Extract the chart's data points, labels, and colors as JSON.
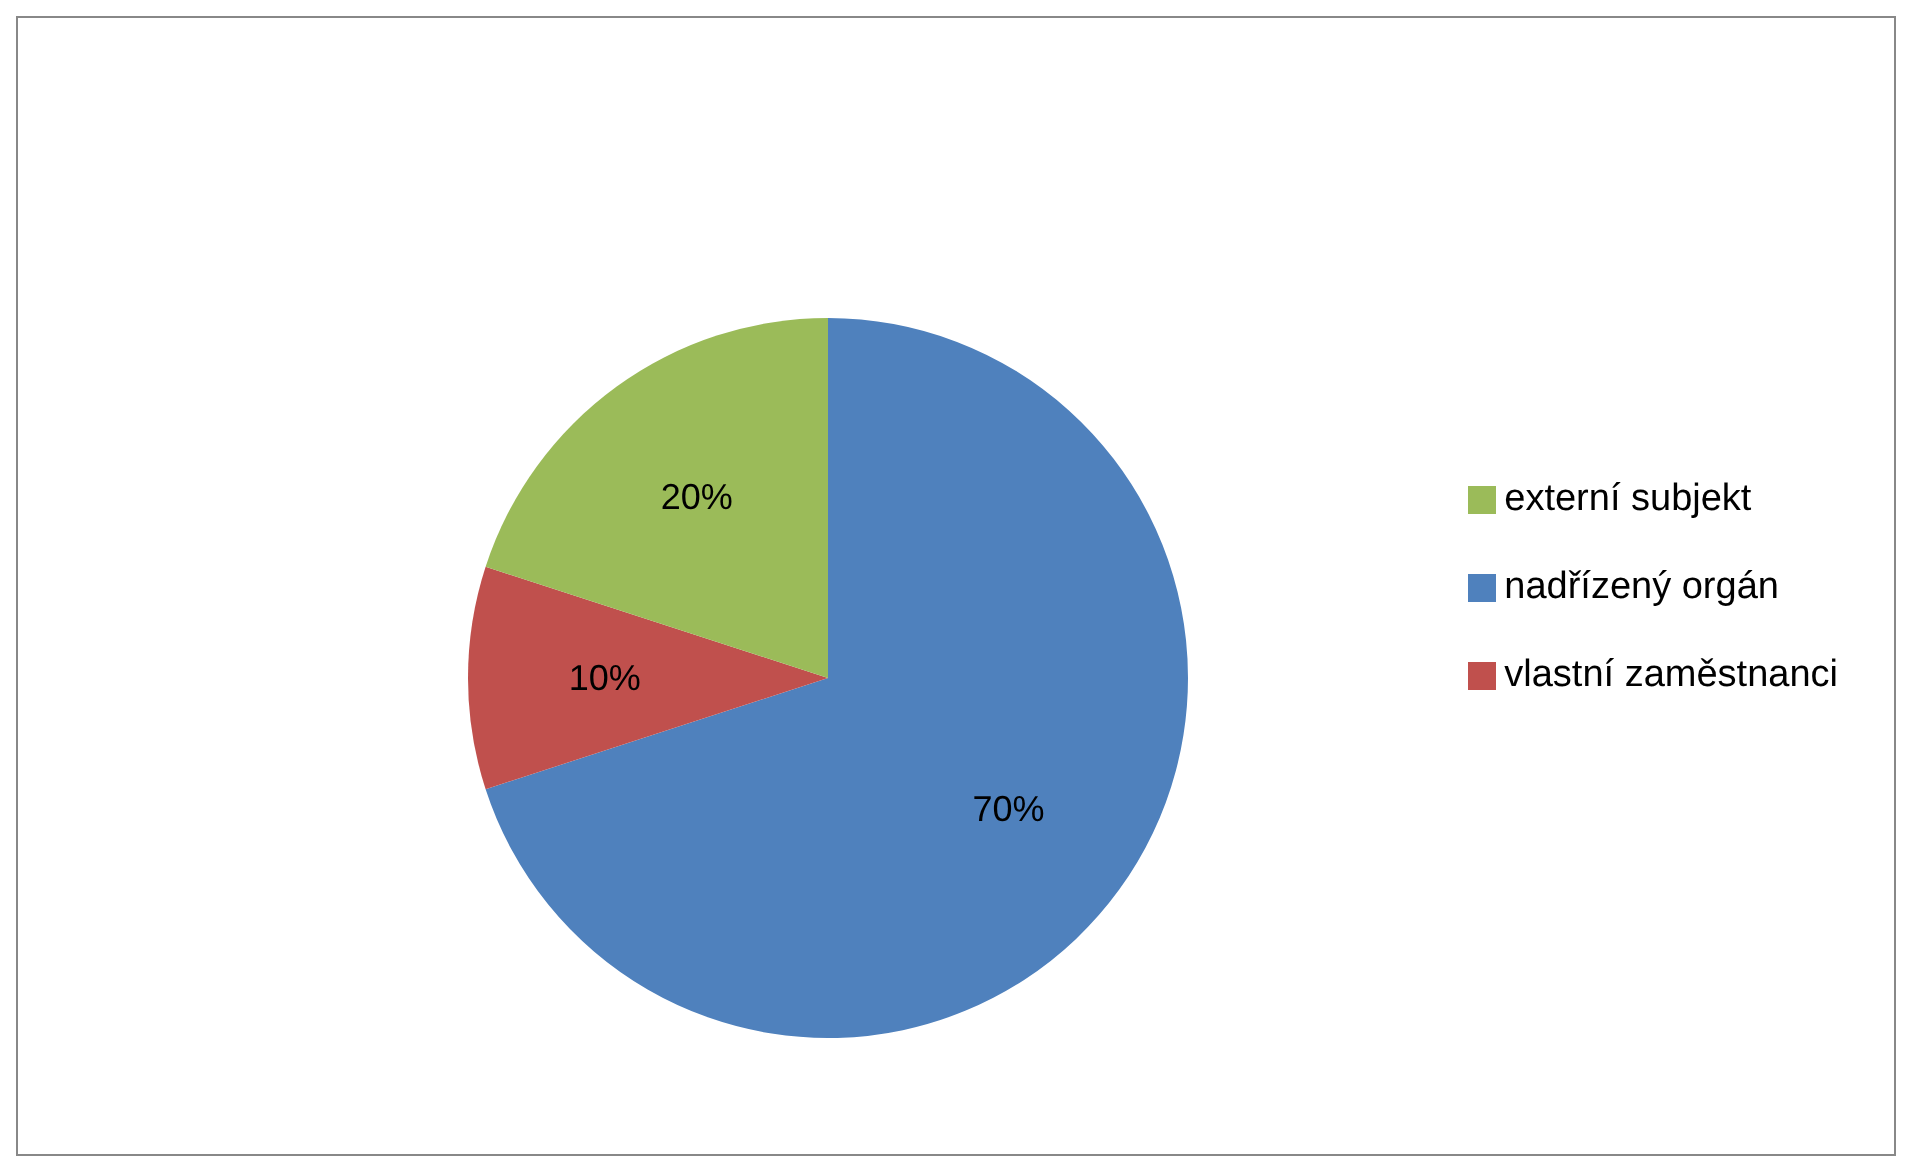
{
  "chart_data": {
    "type": "pie",
    "categories": [
      "nadřízený orgán",
      "vlastní zaměstnanci",
      "externí subjekt"
    ],
    "values": [
      70,
      10,
      20
    ],
    "colors": [
      "#4f81bd",
      "#c0504d",
      "#9bbb59"
    ],
    "value_labels": [
      "70%",
      "10%",
      "20%"
    ],
    "legend": "right"
  }
}
